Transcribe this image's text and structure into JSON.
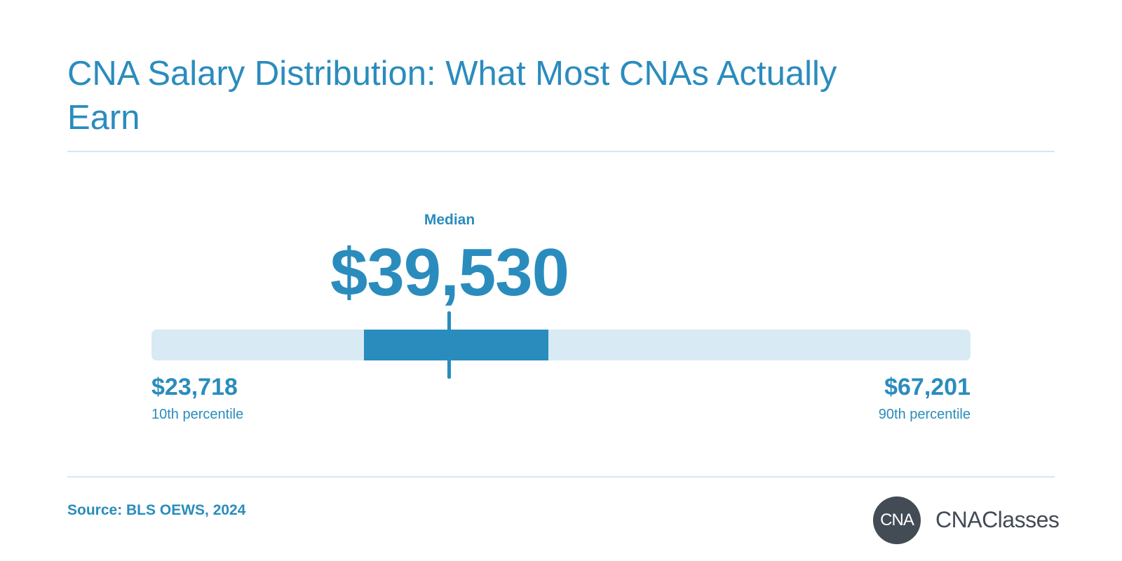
{
  "title": "CNA Salary Distribution: What Most CNAs Actually Earn",
  "source": "Source: BLS OEWS, 2024",
  "logo": {
    "badge_text": "CNA",
    "wordmark": "CNAClasses"
  },
  "colors": {
    "accent": "#2a8cbd",
    "track": "#d8eaf3",
    "logo": "#434b55"
  },
  "chart_data": {
    "type": "bar",
    "scale_min": 23718,
    "scale_max": 67201,
    "median_label": "Median",
    "median_value": 39530,
    "median_display": "$39,530",
    "band_low": 35000,
    "band_high": 44800,
    "low": {
      "display": "$23,718",
      "label": "10th percentile"
    },
    "high": {
      "display": "$67,201",
      "label": "90th percentile"
    }
  }
}
